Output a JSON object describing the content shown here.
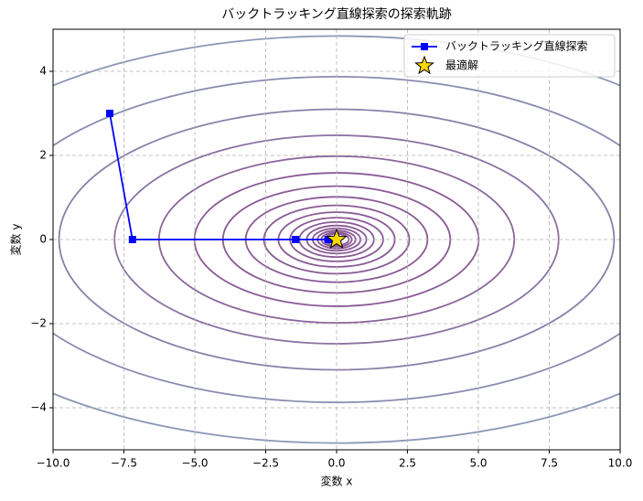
{
  "chart_data": {
    "type": "line",
    "title": "バックトラッキング直線探索の探索軌跡",
    "xlabel": "変数 x",
    "ylabel": "変数 y",
    "xlim": [
      -10,
      10
    ],
    "ylim": [
      -5,
      5
    ],
    "xticks": [
      {
        "value": -10,
        "label": "−10.0"
      },
      {
        "value": -7.5,
        "label": "−7.5"
      },
      {
        "value": -5,
        "label": "−5.0"
      },
      {
        "value": -2.5,
        "label": "−2.5"
      },
      {
        "value": 0,
        "label": "0.0"
      },
      {
        "value": 2.5,
        "label": "2.5"
      },
      {
        "value": 5,
        "label": "5.0"
      },
      {
        "value": 7.5,
        "label": "7.5"
      },
      {
        "value": 10,
        "label": "10.0"
      }
    ],
    "yticks": [
      {
        "value": -4,
        "label": "−4"
      },
      {
        "value": -2,
        "label": "−2"
      },
      0,
      2,
      4
    ],
    "grid": true,
    "legend": "upper right",
    "series": [
      {
        "name": "バックトラッキング直線探索",
        "color": "#0000ff",
        "marker": "square",
        "x": [
          -8,
          -7.2,
          -1.45,
          -0.3,
          -0.05
        ],
        "values": [
          3,
          0,
          0,
          0,
          0
        ]
      },
      {
        "name": "最適解",
        "color": "#ffd700",
        "marker": "star",
        "x": [
          0
        ],
        "values": [
          0
        ]
      }
    ]
  }
}
